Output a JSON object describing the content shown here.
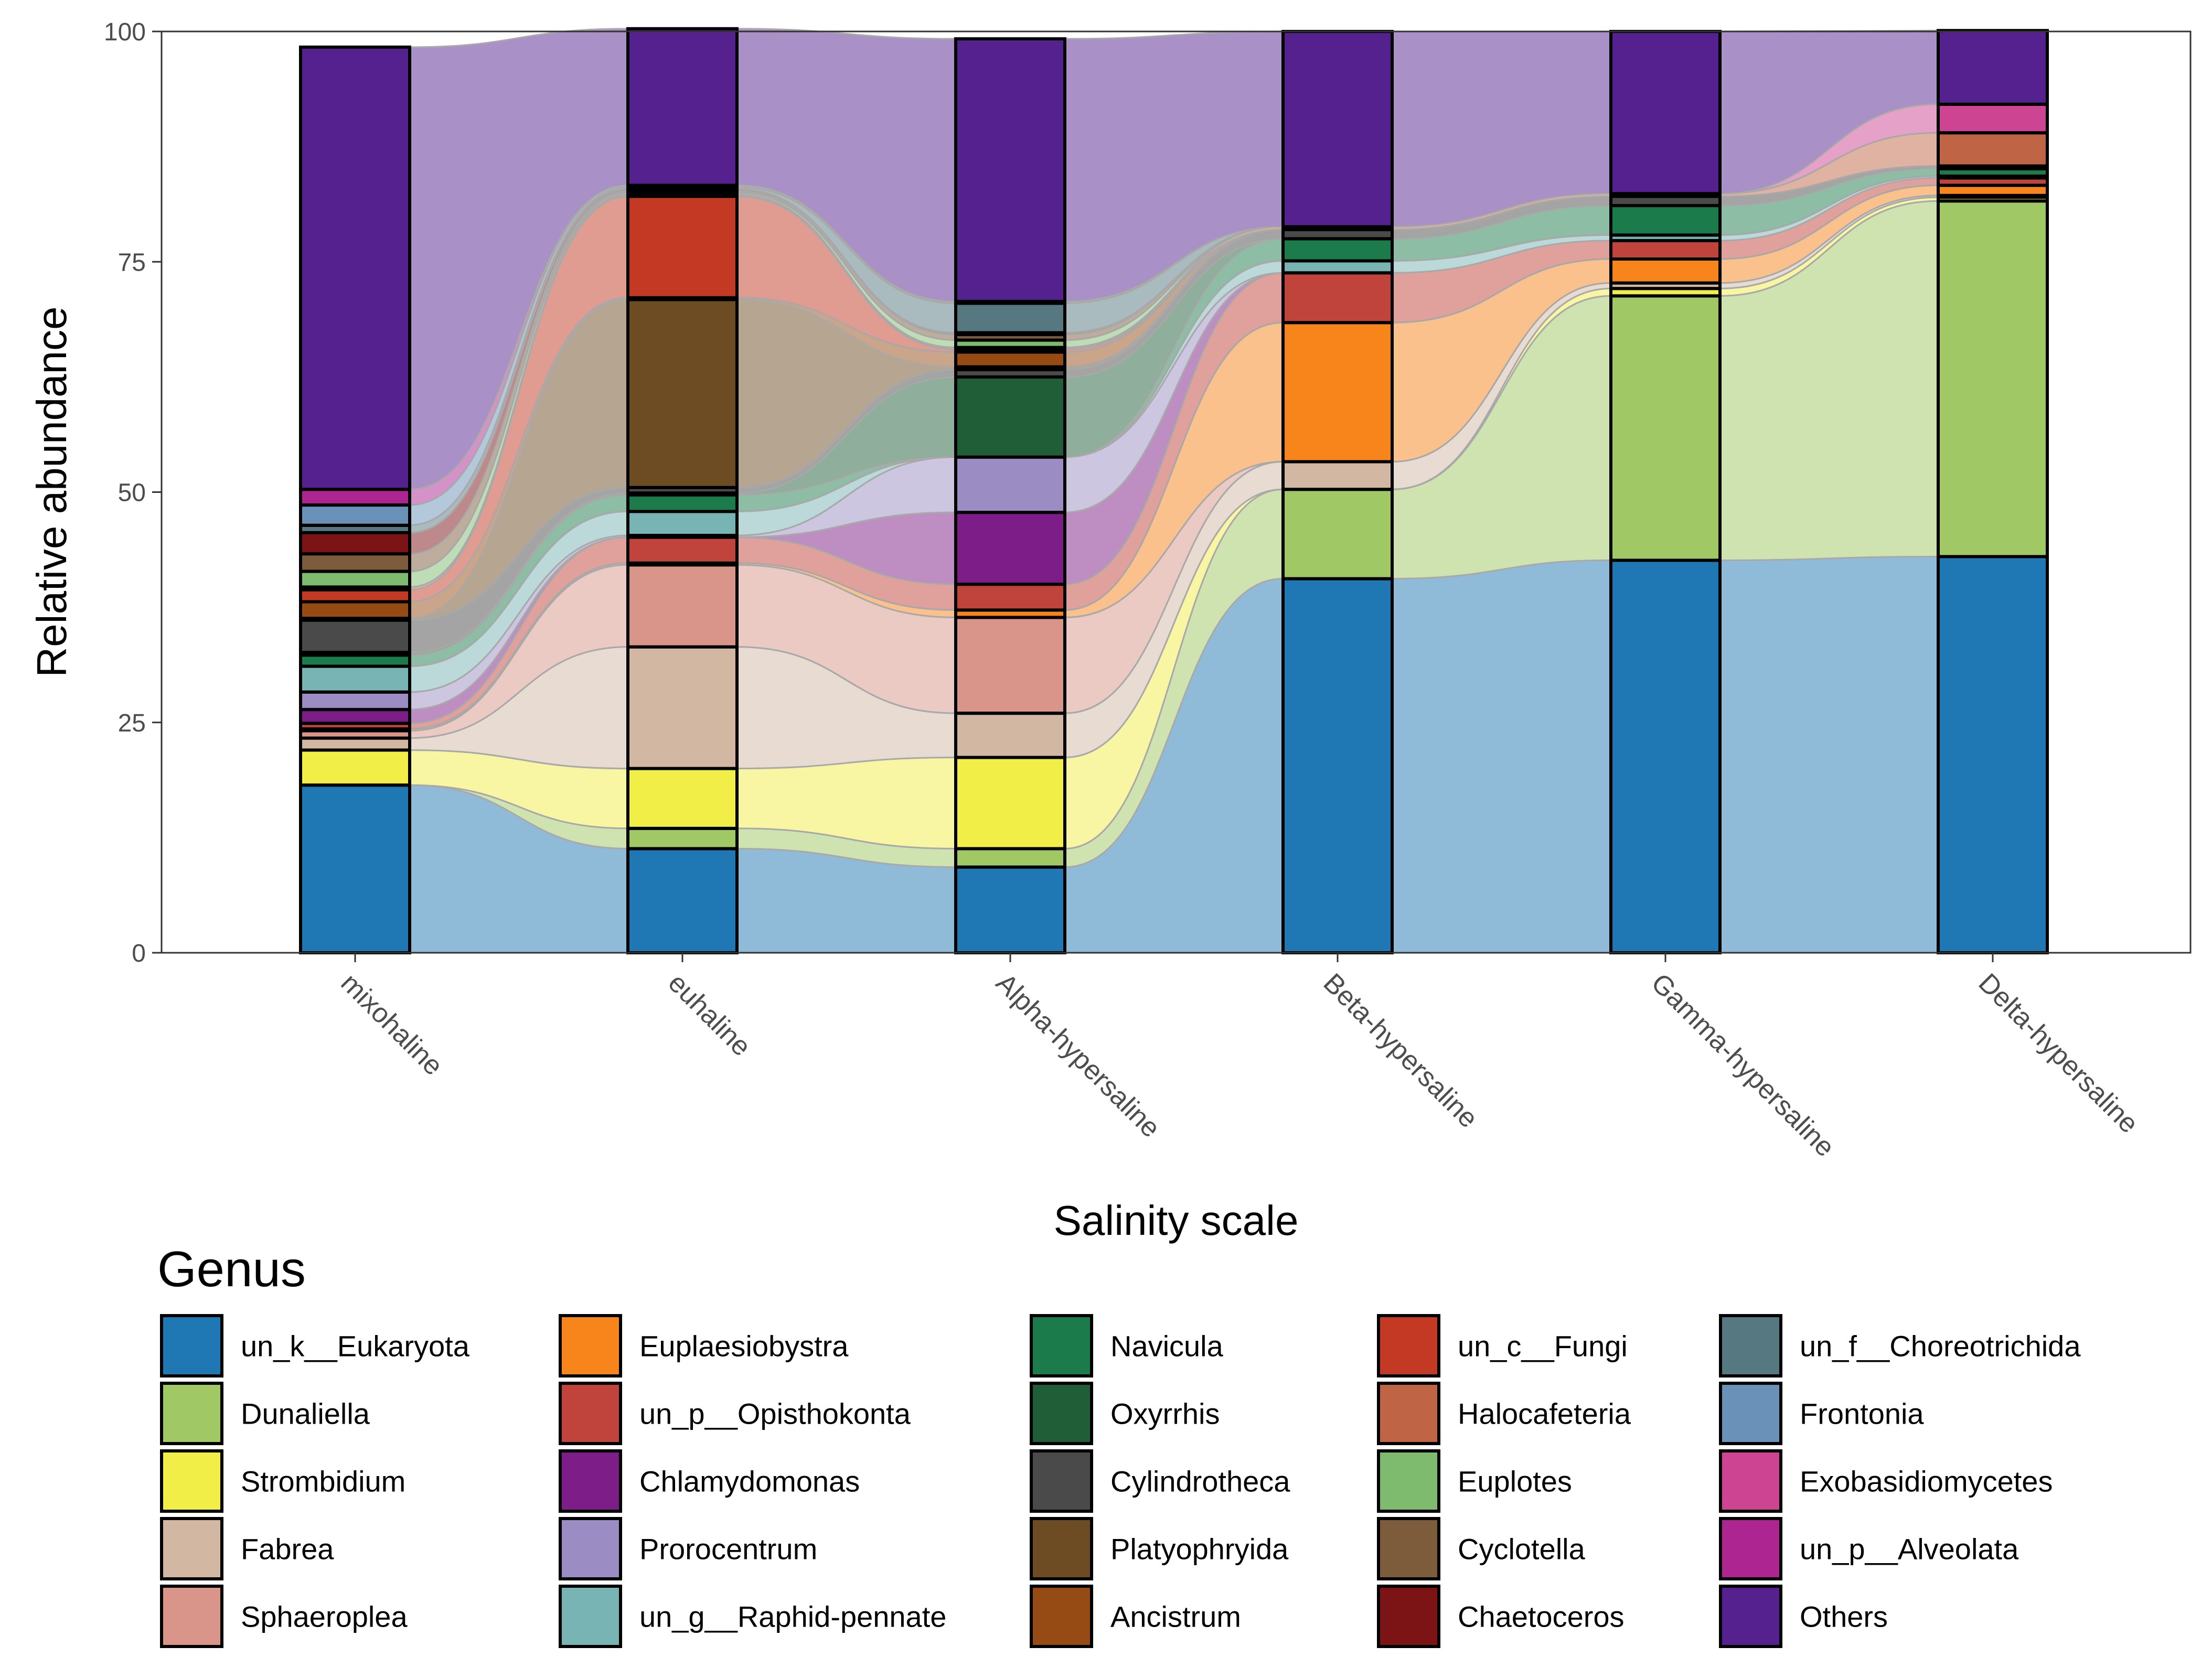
{
  "chart_data": {
    "type": "bar",
    "subtype": "stacked-alluvial",
    "xlabel": "Salinity scale",
    "ylabel": "Relative abundance",
    "ylim": [
      0,
      100
    ],
    "yticks": [
      0,
      25,
      50,
      75,
      100
    ],
    "legend_title": "Genus",
    "legend_position": "bottom",
    "categories": [
      "mixohaline",
      "euhaline",
      "Alpha-hypersaline",
      "Beta-hypersaline",
      "Gamma-hypersaline",
      "Delta-hypersaline"
    ],
    "series": [
      {
        "name": "un_k__Eukaryota",
        "color": "#1f78b4",
        "values": [
          18.2,
          11.3,
          9.3,
          40.6,
          42.6,
          43.0
        ]
      },
      {
        "name": "Dunaliella",
        "color": "#a0c864",
        "values": [
          0.0,
          2.2,
          2.0,
          9.7,
          28.7,
          38.6
        ]
      },
      {
        "name": "Strombidium",
        "color": "#f2ee48",
        "values": [
          3.8,
          6.5,
          9.9,
          0.0,
          0.8,
          0.4
        ]
      },
      {
        "name": "Fabrea",
        "color": "#d2b7a3",
        "values": [
          1.3,
          13.2,
          4.8,
          3.0,
          0.6,
          0.2
        ]
      },
      {
        "name": "Sphaeroplea",
        "color": "#d9958a",
        "values": [
          0.8,
          8.9,
          10.4,
          0.0,
          0.0,
          0.0
        ]
      },
      {
        "name": "Euplaesiobystra",
        "color": "#f8841c",
        "values": [
          0.2,
          0.2,
          0.8,
          15.1,
          2.6,
          1.1
        ]
      },
      {
        "name": "un_p__Opisthokonta",
        "color": "#c1443c",
        "values": [
          0.6,
          2.8,
          2.8,
          5.4,
          2.0,
          0.8
        ]
      },
      {
        "name": "Chlamydomonas",
        "color": "#7d1d88",
        "values": [
          1.5,
          0.0,
          7.8,
          0.0,
          0.0,
          0.0
        ]
      },
      {
        "name": "Prorocentrum",
        "color": "#9b8dc4",
        "values": [
          1.9,
          0.2,
          6.0,
          0.0,
          0.0,
          0.0
        ]
      },
      {
        "name": "un_g__Raphid-pennate",
        "color": "#78b4b4",
        "values": [
          2.8,
          2.6,
          0.0,
          1.3,
          0.6,
          0.2
        ]
      },
      {
        "name": "Navicula",
        "color": "#1b7b4a",
        "values": [
          1.2,
          1.8,
          0.0,
          2.4,
          3.2,
          0.8
        ]
      },
      {
        "name": "Oxyrrhis",
        "color": "#1f5e37",
        "values": [
          0.3,
          0.2,
          8.7,
          0.0,
          0.0,
          0.0
        ]
      },
      {
        "name": "Cylindrotheca",
        "color": "#4a4a4a",
        "values": [
          3.5,
          0.6,
          0.8,
          1.0,
          1.0,
          0.3
        ]
      },
      {
        "name": "Platyophryida",
        "color": "#6e4c23",
        "values": [
          0.2,
          20.4,
          0.3,
          0.0,
          0.0,
          0.0
        ]
      },
      {
        "name": "Ancistrum",
        "color": "#964b14",
        "values": [
          1.8,
          0.2,
          1.6,
          0.0,
          0.0,
          0.0
        ]
      },
      {
        "name": "un_c__Fungi",
        "color": "#c43923",
        "values": [
          1.3,
          11.0,
          0.3,
          0.0,
          0.0,
          0.0
        ]
      },
      {
        "name": "Halocafeteria",
        "color": "#bf6546",
        "values": [
          0.3,
          0.2,
          0.2,
          0.3,
          0.3,
          3.6
        ]
      },
      {
        "name": "Euplotes",
        "color": "#7ebb6e",
        "values": [
          1.7,
          0.2,
          0.8,
          0.0,
          0.0,
          0.0
        ]
      },
      {
        "name": "Cyclotella",
        "color": "#7d5c3c",
        "values": [
          1.9,
          0.2,
          0.6,
          0.0,
          0.0,
          0.0
        ]
      },
      {
        "name": "Chaetoceros",
        "color": "#7c1416",
        "values": [
          2.3,
          0.2,
          0.2,
          0.0,
          0.0,
          0.0
        ]
      },
      {
        "name": "un_f__Choreotrichida",
        "color": "#567880",
        "values": [
          0.8,
          0.2,
          3.2,
          0.0,
          0.0,
          0.0
        ]
      },
      {
        "name": "Frontonia",
        "color": "#6a91b8",
        "values": [
          2.2,
          0.2,
          0.2,
          0.0,
          0.0,
          0.0
        ]
      },
      {
        "name": "Exobasidiomycetes",
        "color": "#cc4492",
        "values": [
          0.0,
          0.0,
          0.0,
          0.0,
          0.0,
          3.1
        ]
      },
      {
        "name": "un_p__Alveolata",
        "color": "#ac2591",
        "values": [
          1.7,
          0.0,
          0.0,
          0.0,
          0.0,
          0.0
        ]
      },
      {
        "name": "Others",
        "color": "#54218e",
        "values": [
          48.0,
          17.0,
          28.5,
          21.2,
          17.6,
          8.0
        ]
      }
    ]
  }
}
